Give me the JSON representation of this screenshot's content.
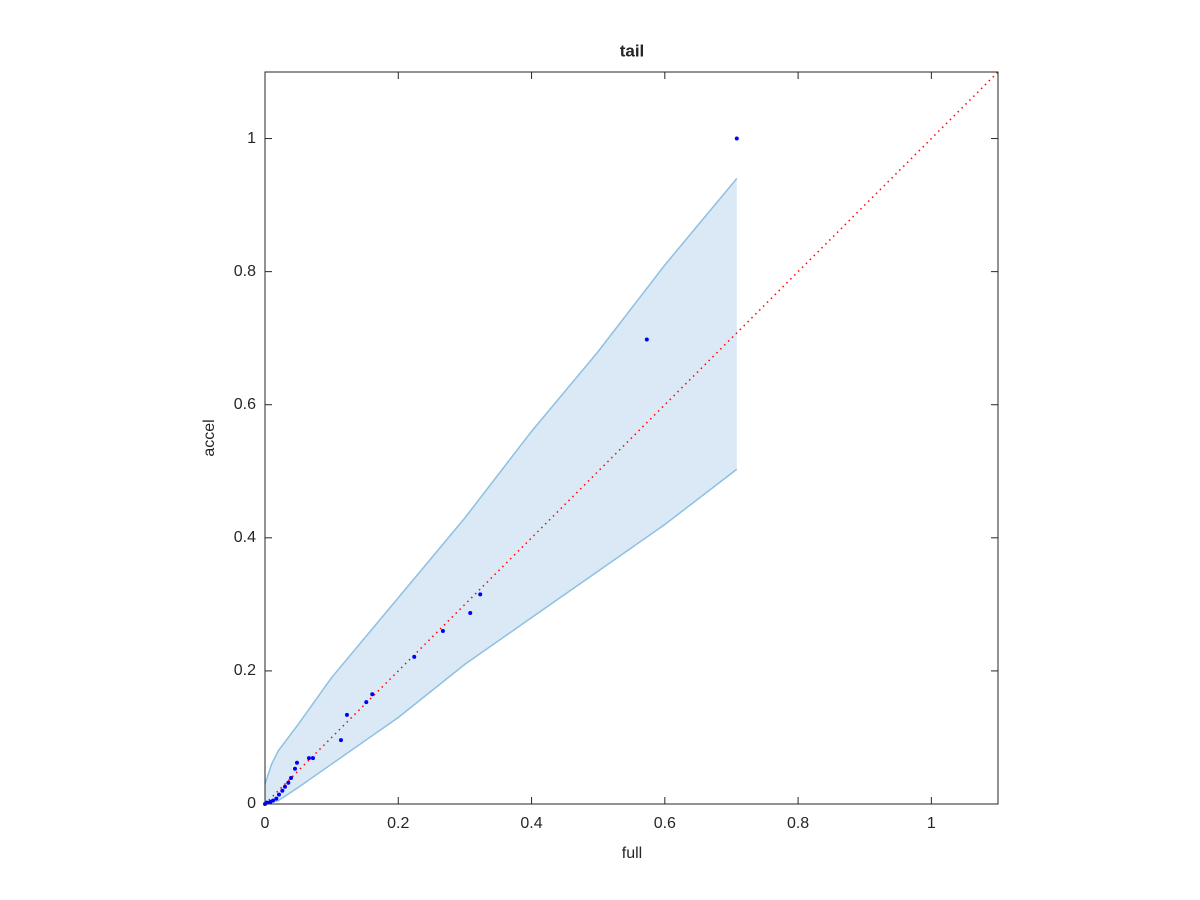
{
  "chart_data": {
    "type": "scatter",
    "title": "tail",
    "xlabel": "full",
    "ylabel": "accel",
    "xlim": [
      0,
      1.1
    ],
    "ylim": [
      0,
      1.1
    ],
    "xticks": [
      0,
      0.2,
      0.4,
      0.6,
      0.8,
      1
    ],
    "yticks": [
      0,
      0.2,
      0.4,
      0.6,
      0.8,
      1
    ],
    "band": {
      "x": [
        0,
        0.01,
        0.02,
        0.05,
        0.1,
        0.2,
        0.3,
        0.4,
        0.5,
        0.6,
        0.708
      ],
      "upper": [
        0.03,
        0.06,
        0.08,
        0.12,
        0.19,
        0.31,
        0.43,
        0.56,
        0.68,
        0.81,
        0.94
      ],
      "lower": [
        0,
        0.003,
        0.005,
        0.025,
        0.06,
        0.13,
        0.21,
        0.28,
        0.35,
        0.42,
        0.503
      ],
      "color": "#dae9f5",
      "edge_color": "#8ec0e3"
    },
    "reference": {
      "x": [
        0,
        1.1
      ],
      "y": [
        0,
        1.1
      ],
      "color": "#ff0000"
    },
    "points": {
      "color": "#0000ff",
      "x": [
        0.708,
        0.573,
        0.323,
        0.308,
        0.267,
        0.224,
        0.161,
        0.152,
        0.123,
        0.114,
        0.072,
        0.066,
        0.048,
        0.045,
        0.039,
        0.035,
        0.03,
        0.026,
        0.021,
        0.017,
        0.012,
        0.008,
        0.003,
        0
      ],
      "y": [
        1.0,
        0.698,
        0.315,
        0.287,
        0.26,
        0.221,
        0.165,
        0.153,
        0.134,
        0.096,
        0.069,
        0.069,
        0.062,
        0.053,
        0.039,
        0.032,
        0.026,
        0.02,
        0.014,
        0.008,
        0.005,
        0.003,
        0.002,
        0
      ]
    }
  }
}
